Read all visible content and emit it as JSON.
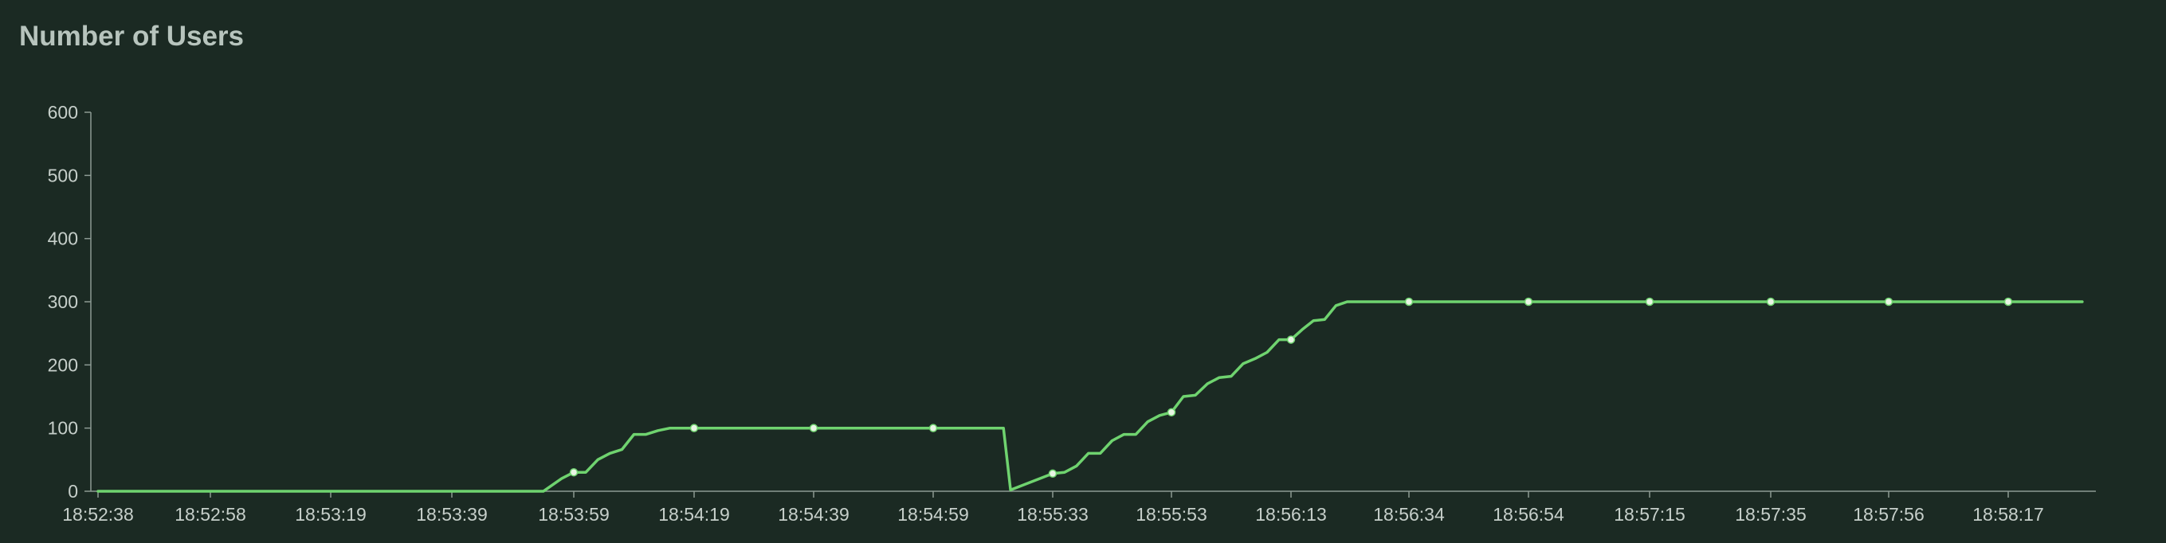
{
  "chart_data": {
    "type": "line",
    "title": "Number of Users",
    "xlabel": "",
    "ylabel": "",
    "ylim": [
      0,
      600
    ],
    "y_ticks": [
      0,
      100,
      200,
      300,
      400,
      500,
      600
    ],
    "x_range": [
      "18:52:38",
      "18:58:30"
    ],
    "x_ticks": [
      "18:52:38",
      "18:52:58",
      "18:53:19",
      "18:53:39",
      "18:53:59",
      "18:54:19",
      "18:54:39",
      "18:54:59",
      "18:55:33",
      "18:55:53",
      "18:56:13",
      "18:56:34",
      "18:56:54",
      "18:57:15",
      "18:57:35",
      "18:57:56",
      "18:58:17"
    ],
    "grid": false,
    "legend": "none",
    "line_color": "#6fd36f",
    "marker_color": "#e8f5e4",
    "series": [
      {
        "x": [
          "18:52:38",
          "18:53:54",
          "18:53:57",
          "18:53:59",
          "18:54:01",
          "18:54:03",
          "18:54:05",
          "18:54:07",
          "18:54:09",
          "18:54:11",
          "18:54:13",
          "18:54:15",
          "18:54:17",
          "18:54:19",
          "18:54:39",
          "18:54:59",
          "18:55:17",
          "18:55:19",
          "18:55:21",
          "18:55:33",
          "18:55:35",
          "18:55:37",
          "18:55:39",
          "18:55:41",
          "18:55:43",
          "18:55:45",
          "18:55:47",
          "18:55:49",
          "18:55:51",
          "18:55:53",
          "18:55:55",
          "18:55:57",
          "18:55:59",
          "18:56:01",
          "18:56:03",
          "18:56:05",
          "18:56:07",
          "18:56:09",
          "18:56:11",
          "18:56:13",
          "18:56:15",
          "18:56:17",
          "18:56:19",
          "18:56:21",
          "18:56:23",
          "18:56:25",
          "18:56:27",
          "18:56:29",
          "18:56:34",
          "18:56:54",
          "18:57:15",
          "18:57:35",
          "18:57:56",
          "18:58:17",
          "18:58:30"
        ],
        "values": [
          0,
          0,
          20,
          30,
          30,
          50,
          60,
          66,
          90,
          90,
          96,
          100,
          100,
          100,
          100,
          100,
          100,
          100,
          2,
          28,
          30,
          40,
          60,
          60,
          80,
          90,
          90,
          110,
          120,
          125,
          150,
          152,
          170,
          180,
          182,
          202,
          210,
          220,
          240,
          240,
          256,
          270,
          272,
          294,
          300,
          300,
          300,
          300,
          300,
          300,
          300,
          300,
          300,
          300,
          300
        ],
        "markers": [
          "18:53:59",
          "18:54:19",
          "18:54:39",
          "18:54:59",
          "18:55:33",
          "18:55:53",
          "18:56:13",
          "18:56:34",
          "18:56:54",
          "18:57:15",
          "18:57:35",
          "18:57:56",
          "18:58:17"
        ]
      }
    ]
  }
}
